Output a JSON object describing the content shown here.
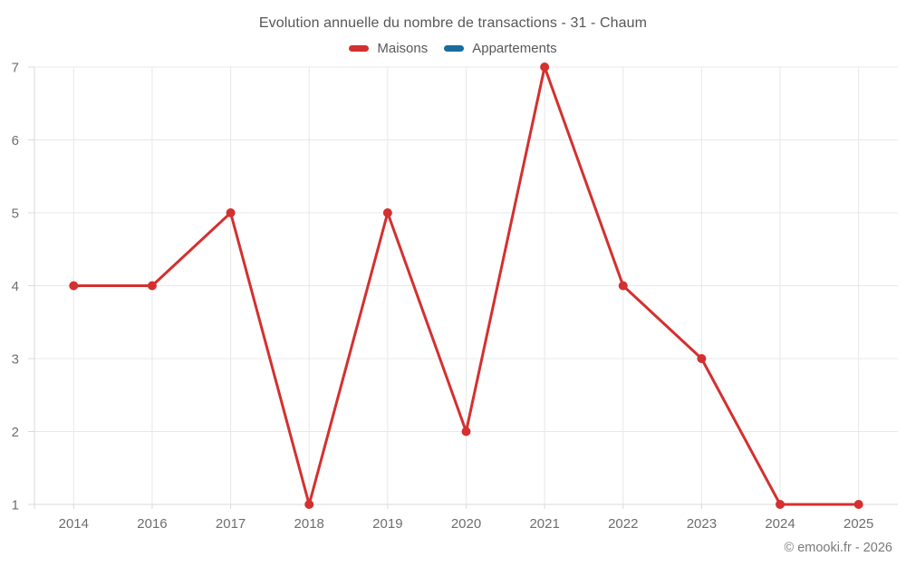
{
  "chart": {
    "title": "Evolution annuelle du nombre de transactions - 31 - Chaum",
    "legend": [
      {
        "label": "Maisons",
        "color": "#d4302f"
      },
      {
        "label": "Appartements",
        "color": "#1a6d9e"
      }
    ]
  },
  "footer": {
    "watermark": "© emooki.fr - 2026"
  },
  "chart_data": {
    "type": "line",
    "title": "Evolution annuelle du nombre de transactions - 31 - Chaum",
    "categories": [
      "2014",
      "2016",
      "2017",
      "2018",
      "2019",
      "2020",
      "2021",
      "2022",
      "2023",
      "2024",
      "2025"
    ],
    "series": [
      {
        "name": "Maisons",
        "color": "#d4302f",
        "values": [
          4,
          4,
          5,
          1,
          5,
          2,
          7,
          4,
          3,
          1,
          1
        ]
      },
      {
        "name": "Appartements",
        "color": "#1a6d9e",
        "values": []
      }
    ],
    "xlabel": "",
    "ylabel": "",
    "ylim": [
      1,
      7
    ],
    "yticks": [
      1,
      2,
      3,
      4,
      5,
      6,
      7
    ],
    "grid": true,
    "legend_position": "top",
    "marker": "circle",
    "colors": {
      "grid": "#e8e8e8",
      "axis": "#d9d9d9",
      "tick_label": "#6e6e6e",
      "title": "#575757",
      "watermark": "#7a7a7a"
    }
  }
}
